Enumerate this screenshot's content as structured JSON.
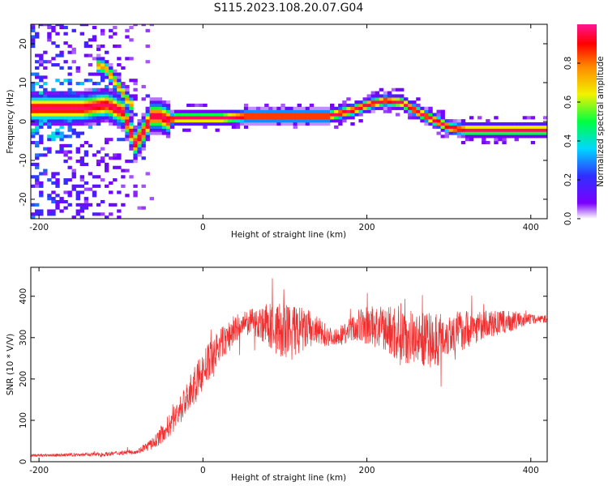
{
  "title": "S115.2023.108.20.07.G04",
  "colors": {
    "snr_line": "#f03030",
    "frame": "#000000",
    "colormap": [
      "#ffffff",
      "#7a00ff",
      "#2f2fff",
      "#00d8ff",
      "#00ff40",
      "#f2f200",
      "#ff8a00",
      "#ff0000",
      "#ff1493"
    ]
  },
  "chart_data": [
    {
      "type": "heatmap",
      "xlabel": "Height of straight line (km)",
      "ylabel": "Frequency (Hz)",
      "xlim": [
        -210,
        420
      ],
      "ylim": [
        -25,
        25
      ],
      "xticks": [
        -200,
        0,
        200,
        400
      ],
      "yticks": [
        -20,
        -10,
        0,
        10,
        20
      ],
      "colorbar": {
        "label": "Normalized spectral amplitude",
        "range": [
          0,
          1
        ],
        "ticks": [
          0.0,
          0.2,
          0.4,
          0.6,
          0.8
        ]
      },
      "ridge": {
        "x": [
          -200,
          -150,
          -120,
          -100,
          -85,
          -75,
          -65,
          -55,
          -45,
          -35,
          -20,
          0,
          20,
          50,
          100,
          150,
          180,
          200,
          220,
          240,
          260,
          280,
          300,
          320,
          350,
          380,
          420
        ],
        "y": [
          3,
          3,
          4,
          2,
          -6,
          -3,
          1,
          1,
          0,
          0.5,
          0.5,
          0.5,
          0.5,
          1,
          1,
          1,
          2.5,
          4,
          5,
          4.5,
          2,
          0,
          -2,
          -2.5,
          -2.5,
          -2.5,
          -2.5
        ]
      },
      "side_branch": {
        "x": [
          -128,
          -120,
          -113,
          -105,
          -98,
          -92
        ],
        "y": [
          14,
          13,
          11,
          8.5,
          6.5,
          4
        ]
      }
    },
    {
      "type": "line",
      "xlabel": "Height of straight line (km)",
      "ylabel": "SNR (10 * V/V)",
      "xlim": [
        -210,
        420
      ],
      "ylim": [
        0,
        470
      ],
      "xticks": [
        -200,
        0,
        200,
        400
      ],
      "yticks": [
        0,
        100,
        200,
        300,
        400
      ],
      "grid": false,
      "envelope": {
        "x": [
          -210,
          -120,
          -80,
          -60,
          -40,
          -20,
          0,
          20,
          40,
          60,
          80,
          100,
          130,
          160,
          180,
          200,
          220,
          240,
          260,
          280,
          300,
          320,
          340,
          360,
          380,
          400,
          420
        ],
        "mean": [
          15,
          18,
          25,
          45,
          90,
          150,
          220,
          280,
          320,
          340,
          330,
          310,
          320,
          300,
          320,
          330,
          320,
          310,
          300,
          290,
          310,
          320,
          330,
          335,
          340,
          345,
          345
        ],
        "spread": [
          5,
          8,
          10,
          25,
          50,
          70,
          80,
          70,
          60,
          50,
          90,
          130,
          80,
          30,
          50,
          80,
          90,
          130,
          100,
          120,
          90,
          80,
          60,
          50,
          40,
          20,
          15
        ]
      }
    }
  ]
}
